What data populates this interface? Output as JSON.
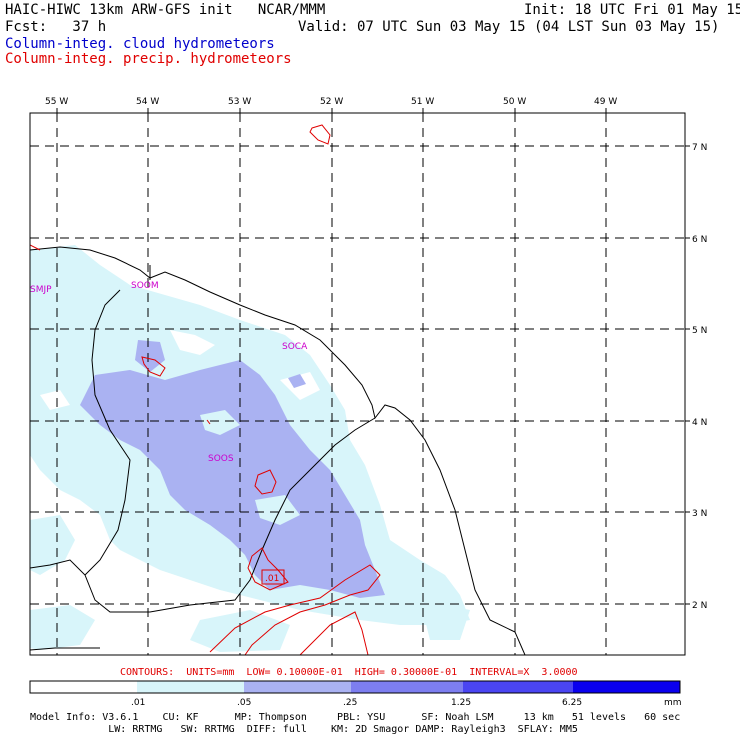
{
  "header": {
    "model_title": "HAIC-HIWC 13km ARW-GFS init   NCAR/MMM",
    "init": "Init: 18 UTC Fri 01 May 15",
    "fcst": "Fcst:   37 h",
    "valid": "Valid: 07 UTC Sun 03 May 15 (04 LST Sun 03 May 15)",
    "field1": "Column-integ. cloud hydrometeors",
    "field2": "Column-integ. precip. hydrometeors",
    "field1_color": "#0000cc",
    "field2_color": "#e00000"
  },
  "map": {
    "lon_labels": [
      "55 W",
      "54 W",
      "53 W",
      "52 W",
      "51 W",
      "50 W",
      "49 W"
    ],
    "lat_labels": [
      "7 N",
      "6 N",
      "5 N",
      "4 N",
      "3 N",
      "2 N"
    ],
    "stations": [
      "SMJP",
      "SOOM",
      "SOCA",
      "SOOS"
    ],
    "contour_label": ".01"
  },
  "contours_line": "CONTOURS:  UNITS=mm  LOW= 0.10000E-01  HIGH= 0.30000E-01  INTERVAL=X  3.0000",
  "colorbar": {
    "ticks": [
      ".01",
      ".05",
      ".25",
      "1.25",
      "6.25"
    ],
    "unit": "mm",
    "colors": [
      "#ffffff",
      "#d8f5fa",
      "#aab2f2",
      "#7d7ef0",
      "#4a45f2",
      "#0a00ee"
    ]
  },
  "footer": {
    "line1": "Model Info: V3.6.1    CU: KF      MP: Thompson     PBL: YSU      SF: Noah LSM     13 km   51 levels   60 sec",
    "line2": "             LW: RRTMG   SW: RRTMG  DIFF: full    KM: 2D Smagor DAMP: Rayleigh3  SFLAY: MM5"
  }
}
